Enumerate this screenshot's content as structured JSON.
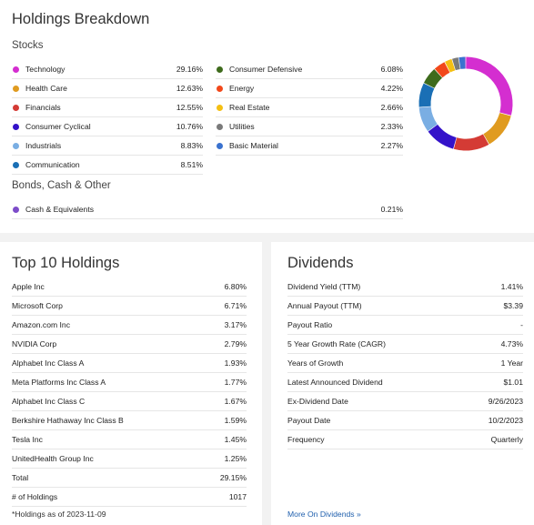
{
  "breakdown": {
    "title": "Holdings Breakdown",
    "stocks_title": "Stocks",
    "bonds_title": "Bonds, Cash & Other",
    "stocks_left": [
      {
        "label": "Technology",
        "value": "29.16%",
        "color": "#d42ed0"
      },
      {
        "label": "Health Care",
        "value": "12.63%",
        "color": "#e09b20"
      },
      {
        "label": "Financials",
        "value": "12.55%",
        "color": "#d43b35"
      },
      {
        "label": "Consumer Cyclical",
        "value": "10.76%",
        "color": "#3412c9"
      },
      {
        "label": "Industrials",
        "value": "8.83%",
        "color": "#7aaee3"
      },
      {
        "label": "Communication",
        "value": "8.51%",
        "color": "#1a6fb5"
      }
    ],
    "stocks_right": [
      {
        "label": "Consumer Defensive",
        "value": "6.08%",
        "color": "#3e6b1c"
      },
      {
        "label": "Energy",
        "value": "4.22%",
        "color": "#f2481a"
      },
      {
        "label": "Real Estate",
        "value": "2.66%",
        "color": "#f5bf12"
      },
      {
        "label": "Utilities",
        "value": "2.33%",
        "color": "#7a7a7a"
      },
      {
        "label": "Basic Material",
        "value": "2.27%",
        "color": "#3a72cf"
      }
    ],
    "bonds": [
      {
        "label": "Cash & Equivalents",
        "value": "0.21%",
        "color": "#7d4cc9"
      }
    ]
  },
  "chart_data": {
    "type": "pie",
    "categories": [
      "Technology",
      "Health Care",
      "Financials",
      "Consumer Cyclical",
      "Industrials",
      "Communication",
      "Consumer Defensive",
      "Energy",
      "Real Estate",
      "Utilities",
      "Basic Material",
      "Cash & Equivalents"
    ],
    "values": [
      29.16,
      12.63,
      12.55,
      10.76,
      8.83,
      8.51,
      6.08,
      4.22,
      2.66,
      2.33,
      2.27,
      0.21
    ],
    "colors": [
      "#d42ed0",
      "#e09b20",
      "#d43b35",
      "#3412c9",
      "#7aaee3",
      "#1a6fb5",
      "#3e6b1c",
      "#f2481a",
      "#f5bf12",
      "#7a7a7a",
      "#3a72cf",
      "#7d4cc9"
    ],
    "legend": "left"
  },
  "top10": {
    "title": "Top 10 Holdings",
    "rows": [
      {
        "label": "Apple Inc",
        "value": "6.80%"
      },
      {
        "label": "Microsoft Corp",
        "value": "6.71%"
      },
      {
        "label": "Amazon.com Inc",
        "value": "3.17%"
      },
      {
        "label": "NVIDIA Corp",
        "value": "2.79%"
      },
      {
        "label": "Alphabet Inc Class A",
        "value": "1.93%"
      },
      {
        "label": "Meta Platforms Inc Class A",
        "value": "1.77%"
      },
      {
        "label": "Alphabet Inc Class C",
        "value": "1.67%"
      },
      {
        "label": "Berkshire Hathaway Inc Class B",
        "value": "1.59%"
      },
      {
        "label": "Tesla Inc",
        "value": "1.45%"
      },
      {
        "label": "UnitedHealth Group Inc",
        "value": "1.25%"
      },
      {
        "label": "Total",
        "value": "29.15%"
      },
      {
        "label": "# of Holdings",
        "value": "1017"
      }
    ],
    "footnote": "*Holdings as of 2023-11-09"
  },
  "dividends": {
    "title": "Dividends",
    "rows": [
      {
        "label": "Dividend Yield (TTM)",
        "value": "1.41%"
      },
      {
        "label": "Annual Payout (TTM)",
        "value": "$3.39"
      },
      {
        "label": "Payout Ratio",
        "value": "-"
      },
      {
        "label": "5 Year Growth Rate (CAGR)",
        "value": "4.73%"
      },
      {
        "label": "Years of Growth",
        "value": "1 Year"
      },
      {
        "label": "Latest Announced Dividend",
        "value": "$1.01"
      },
      {
        "label": "Ex-Dividend Date",
        "value": "9/26/2023"
      },
      {
        "label": "Payout Date",
        "value": "10/2/2023"
      },
      {
        "label": "Frequency",
        "value": "Quarterly"
      }
    ],
    "link_label": "More On Dividends »"
  }
}
